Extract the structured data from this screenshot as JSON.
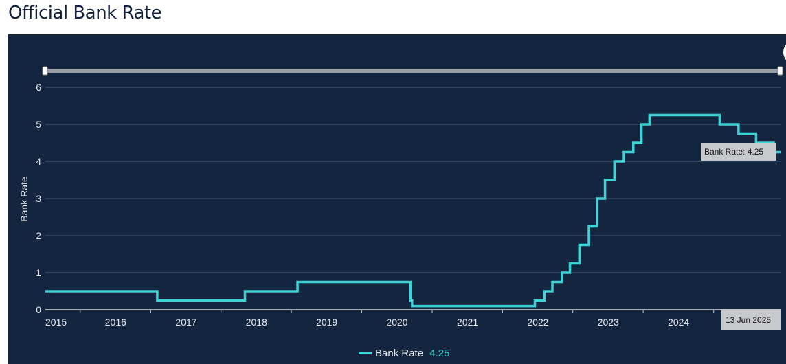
{
  "page": {
    "title": "Official Bank Rate"
  },
  "colors": {
    "background": "#13253f",
    "line": "#3cd4d4",
    "grid": "#4a5c78",
    "text": "#e6e9ee",
    "tooltip": "#c7c9cc"
  },
  "tooltip": {
    "rate_label": "Bank Rate: 4.25",
    "date_label": "13 Jun 2025"
  },
  "legend": {
    "label": "Bank Rate",
    "value": "4.25"
  },
  "chart_data": {
    "type": "line",
    "title": "",
    "ylabel": "Bank Rate",
    "xlabel": "",
    "ylim": [
      0,
      6
    ],
    "xlim": [
      "2015-01-01",
      "2025-06-13"
    ],
    "x_ticks": [
      "2015",
      "2016",
      "2017",
      "2018",
      "2019",
      "2020",
      "2021",
      "2022",
      "2023",
      "2024"
    ],
    "y_ticks": [
      0,
      1,
      2,
      3,
      4,
      5,
      6
    ],
    "grid": true,
    "legend_position": "bottom-center",
    "series": [
      {
        "name": "Bank Rate",
        "step": true,
        "points": [
          [
            "2015-01-01",
            0.5
          ],
          [
            "2016-08-04",
            0.25
          ],
          [
            "2017-11-02",
            0.5
          ],
          [
            "2018-08-02",
            0.75
          ],
          [
            "2020-03-11",
            0.25
          ],
          [
            "2020-03-19",
            0.1
          ],
          [
            "2021-12-16",
            0.25
          ],
          [
            "2022-02-03",
            0.5
          ],
          [
            "2022-03-17",
            0.75
          ],
          [
            "2022-05-05",
            1.0
          ],
          [
            "2022-06-16",
            1.25
          ],
          [
            "2022-08-04",
            1.75
          ],
          [
            "2022-09-22",
            2.25
          ],
          [
            "2022-11-03",
            3.0
          ],
          [
            "2022-12-15",
            3.5
          ],
          [
            "2023-02-02",
            4.0
          ],
          [
            "2023-03-23",
            4.25
          ],
          [
            "2023-05-11",
            4.5
          ],
          [
            "2023-06-22",
            5.0
          ],
          [
            "2023-08-03",
            5.25
          ],
          [
            "2024-08-01",
            5.0
          ],
          [
            "2024-11-07",
            4.75
          ],
          [
            "2025-02-06",
            4.5
          ],
          [
            "2025-05-08",
            4.25
          ],
          [
            "2025-06-13",
            4.25
          ]
        ]
      }
    ]
  }
}
